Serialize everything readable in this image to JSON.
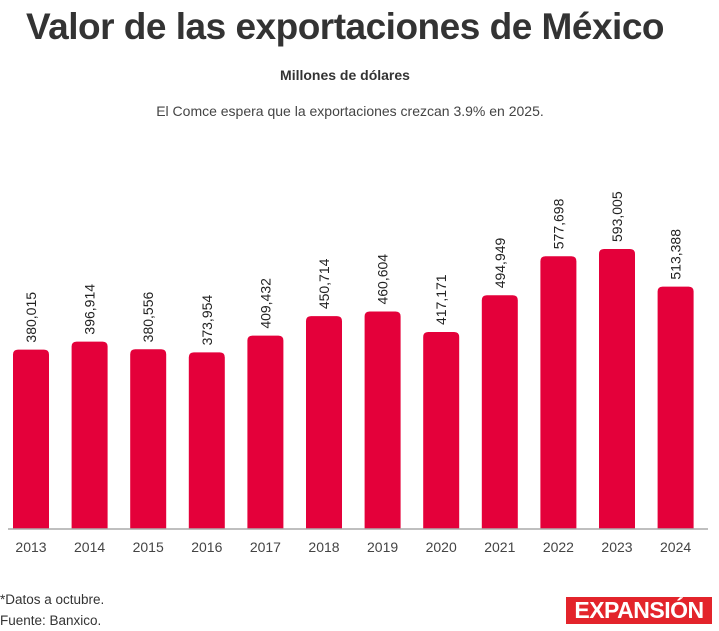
{
  "header": {
    "title": "Valor de las exportaciones de México",
    "subtitle": "Millones de dólares",
    "description": "El Comce espera que la exportaciones crezcan 3.9% en 2025."
  },
  "footer": {
    "note": "*Datos a octubre.",
    "source": "Fuente: Banxico.",
    "logo": "EXPANSIÓN"
  },
  "colors": {
    "bar": "#e4003a",
    "axis": "#aaaaaa",
    "text": "#333333",
    "logo_bg": "#e3242b"
  },
  "chart_data": {
    "type": "bar",
    "title": "Valor de las exportaciones de México",
    "subtitle": "Millones de dólares",
    "xlabel": "",
    "ylabel": "",
    "categories": [
      "2013",
      "2014",
      "2015",
      "2016",
      "2017",
      "2018",
      "2019",
      "2020",
      "2021",
      "2022",
      "2023",
      "2024"
    ],
    "values": [
      380015,
      396914,
      380556,
      373954,
      409432,
      450714,
      460604,
      417171,
      494949,
      577698,
      593005,
      513388
    ],
    "data_labels": [
      "380,015",
      "396,914",
      "380,556",
      "373,954",
      "409,432",
      "450,714",
      "460,604",
      "417,171",
      "494,949",
      "577,698",
      "593,005",
      "513,388"
    ],
    "ylim": [
      0,
      593005
    ],
    "grid": false,
    "legend": "none"
  }
}
